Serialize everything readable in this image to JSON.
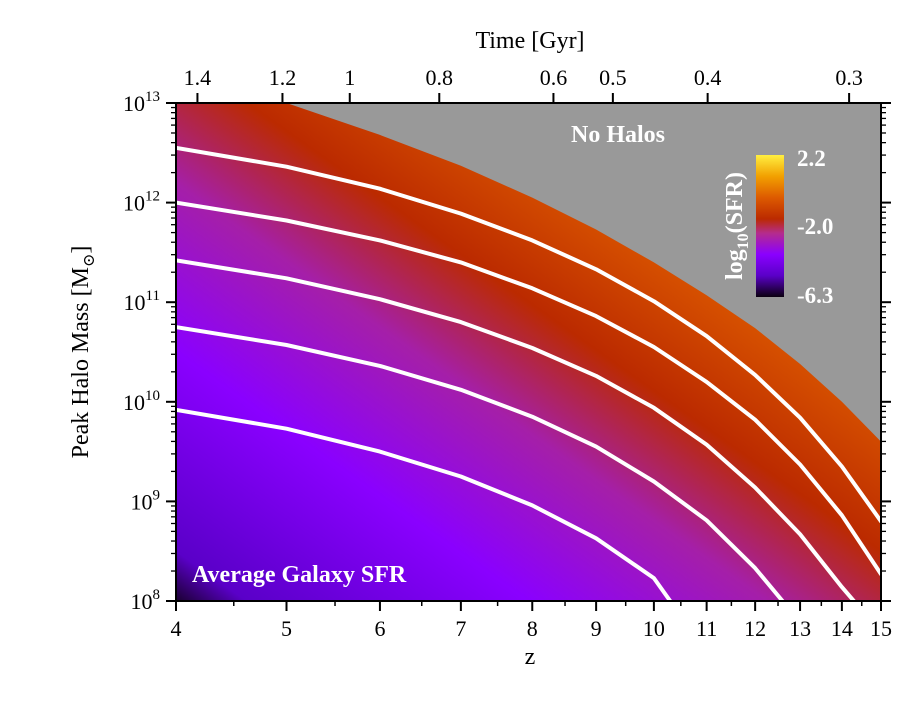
{
  "chart_data": {
    "type": "heatmap",
    "title": "",
    "xlabel": "z",
    "ylabel": "Peak Halo Mass [M",
    "ylabel_sub": "⊙",
    "ylabel_close": "]",
    "top_xlabel": "Time [Gyr]",
    "xlim": [
      4,
      15
    ],
    "x_scale": "log(1+z)",
    "ylim_log10": [
      8,
      13
    ],
    "y_scale": "log",
    "x_ticks": [
      {
        "value": 4,
        "label": "4"
      },
      {
        "value": 5,
        "label": "5"
      },
      {
        "value": 6,
        "label": "6"
      },
      {
        "value": 7,
        "label": "7"
      },
      {
        "value": 8,
        "label": "8"
      },
      {
        "value": 9,
        "label": "9"
      },
      {
        "value": 10,
        "label": "10"
      },
      {
        "value": 11,
        "label": "11"
      },
      {
        "value": 12,
        "label": "12"
      },
      {
        "value": 13,
        "label": "13"
      },
      {
        "value": 14,
        "label": "14"
      },
      {
        "value": 15,
        "label": "15"
      }
    ],
    "y_ticks": [
      {
        "exp": 8,
        "base": "10",
        "sup": "8"
      },
      {
        "exp": 9,
        "base": "10",
        "sup": "9"
      },
      {
        "exp": 10,
        "base": "10",
        "sup": "10"
      },
      {
        "exp": 11,
        "base": "10",
        "sup": "11"
      },
      {
        "exp": 12,
        "base": "10",
        "sup": "12"
      },
      {
        "exp": 13,
        "base": "10",
        "sup": "13"
      }
    ],
    "top_ticks": [
      {
        "z": 4.18,
        "label": "1.4"
      },
      {
        "z": 4.96,
        "label": "1.2"
      },
      {
        "z": 5.66,
        "label": "1"
      },
      {
        "z": 6.72,
        "label": "0.8"
      },
      {
        "z": 8.32,
        "label": "0.6"
      },
      {
        "z": 9.28,
        "label": "0.5"
      },
      {
        "z": 11.02,
        "label": "0.4"
      },
      {
        "z": 14.18,
        "label": "0.3"
      }
    ],
    "colorbar": {
      "label": "log",
      "label_sub": "10",
      "label_rest": "(SFR)",
      "tick_labels": [
        "2.2",
        "-2.0",
        "-6.3"
      ],
      "range": [
        -6.3,
        2.2
      ],
      "colors": [
        "#0b0010",
        "#5a00c8",
        "#8a00ff",
        "#b52c8c",
        "#bb2a00",
        "#dd5a00",
        "#f2a000",
        "#ffe200",
        "#fff8a0"
      ]
    },
    "no_halo_boundary": {
      "z": [
        4.0,
        5.0,
        6.0,
        7.0,
        8.0,
        9.0,
        10.0,
        11.0,
        12.0,
        13.0,
        14.0,
        15.0
      ],
      "log10_mass": [
        13.0,
        13.0,
        12.68,
        12.37,
        12.05,
        11.73,
        11.4,
        11.07,
        10.74,
        10.38,
        10.0,
        9.6
      ]
    },
    "series": [
      {
        "z": [
          4,
          5,
          6,
          7,
          8,
          9,
          10,
          10.3
        ],
        "log10_mass": [
          9.92,
          9.73,
          9.5,
          9.25,
          8.96,
          8.63,
          8.23,
          8.0
        ]
      },
      {
        "z": [
          4,
          5,
          6,
          7,
          8,
          9,
          10,
          11,
          12,
          12.6
        ],
        "log10_mass": [
          10.75,
          10.57,
          10.36,
          10.12,
          9.85,
          9.55,
          9.2,
          8.81,
          8.33,
          8.0
        ]
      },
      {
        "z": [
          4,
          5,
          6,
          7,
          8,
          9,
          10,
          11,
          12,
          13,
          14,
          14.3
        ],
        "log10_mass": [
          11.42,
          11.24,
          11.03,
          10.8,
          10.54,
          10.26,
          9.94,
          9.57,
          9.14,
          8.67,
          8.14,
          8.0
        ]
      },
      {
        "z": [
          4,
          5,
          6,
          7,
          8,
          9,
          10,
          11,
          12,
          13,
          14,
          15
        ],
        "log10_mass": [
          12.0,
          11.82,
          11.62,
          11.4,
          11.14,
          10.86,
          10.55,
          10.2,
          9.82,
          9.37,
          8.86,
          8.27
        ]
      },
      {
        "z": [
          4,
          5,
          6,
          7,
          8,
          9,
          10,
          11,
          12,
          13,
          14,
          15
        ],
        "log10_mass": [
          12.55,
          12.36,
          12.14,
          11.89,
          11.62,
          11.33,
          11.01,
          10.66,
          10.27,
          9.84,
          9.35,
          8.8
        ]
      }
    ],
    "annotations": {
      "no_halos": "No Halos",
      "average_sfr": "Average Galaxy SFR"
    },
    "colors": {
      "no_halo_region": "#999999",
      "contour_lines": "#ffffff"
    },
    "grid": false
  }
}
